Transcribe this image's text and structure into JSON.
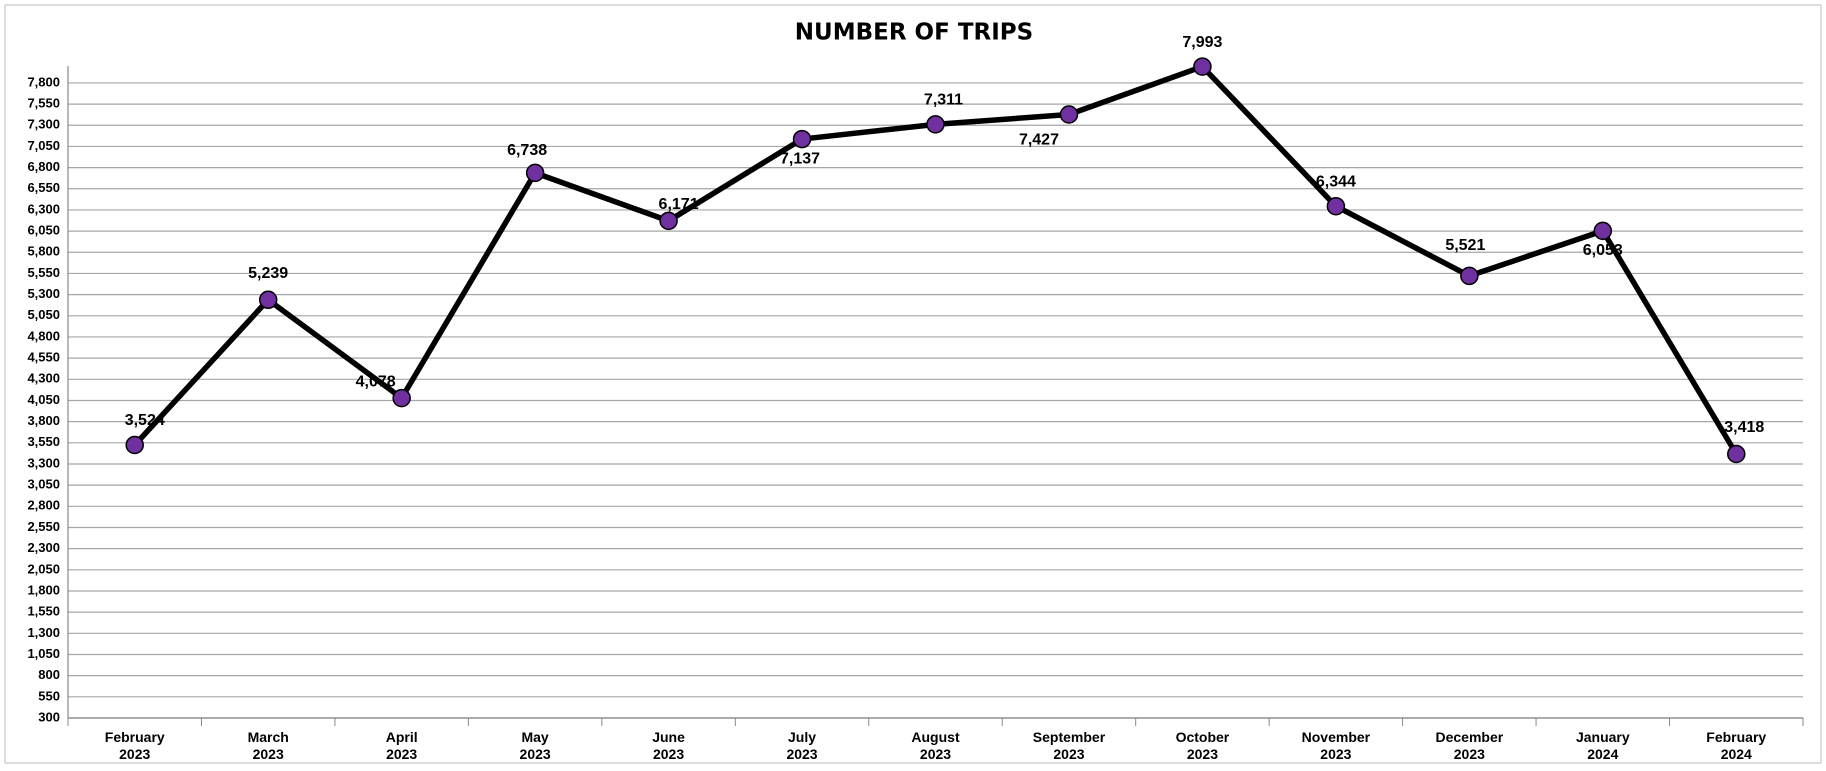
{
  "chart_data": {
    "type": "line",
    "title": "NUMBER OF TRIPS",
    "categories": [
      "February 2023",
      "March 2023",
      "April 2023",
      "May 2023",
      "June 2023",
      "July 2023",
      "August 2023",
      "September 2023",
      "October 2023",
      "November 2023",
      "December 2023",
      "January 2024",
      "February 2024"
    ],
    "series": [
      {
        "name": "Trips",
        "color": "#7030a0",
        "values": [
          3524,
          5239,
          4078,
          6738,
          6171,
          7137,
          7311,
          7427,
          7993,
          6344,
          5521,
          6053,
          3418
        ],
        "value_labels": [
          "3,524",
          "5,239",
          "4,078",
          "6,738",
          "6,171",
          "7,137",
          "7,311",
          "7,427",
          "7,993",
          "6,344",
          "5,521",
          "6,053",
          "3,418"
        ]
      }
    ],
    "ylim": [
      300,
      8000
    ],
    "yticks": [
      300,
      550,
      800,
      {
        "value": 1050,
        "label": "1,050"
      },
      {
        "value": 1300,
        "label": "1,300"
      },
      {
        "value": 1550,
        "label": "1,550"
      },
      {
        "value": 1800,
        "label": "1,800"
      },
      {
        "value": 2050,
        "label": "2,050"
      },
      {
        "value": 2300,
        "label": "2,300"
      },
      {
        "value": 2550,
        "label": "2,550"
      },
      {
        "value": 2800,
        "label": "2,800"
      },
      {
        "value": 3050,
        "label": "3,050"
      },
      {
        "value": 3300,
        "label": "3,300"
      },
      {
        "value": 3550,
        "label": "3,550"
      },
      {
        "value": 3800,
        "label": "3,800"
      },
      {
        "value": 4050,
        "label": "4,050"
      },
      {
        "value": 4300,
        "label": "4,300"
      },
      {
        "value": 4550,
        "label": "4,550"
      },
      {
        "value": 4800,
        "label": "4,800"
      },
      {
        "value": 5050,
        "label": "5,050"
      },
      {
        "value": 5300,
        "label": "5,300"
      },
      {
        "value": 5550,
        "label": "5,550"
      },
      {
        "value": 5800,
        "label": "5,800"
      },
      {
        "value": 6050,
        "label": "6,050"
      },
      {
        "value": 6300,
        "label": "6,300"
      },
      {
        "value": 6550,
        "label": "6,550"
      },
      {
        "value": 6800,
        "label": "6,800"
      },
      {
        "value": 7050,
        "label": "7,050"
      },
      {
        "value": 7300,
        "label": "7,300"
      },
      {
        "value": 7550,
        "label": "7,550"
      },
      {
        "value": 7800,
        "label": "7,800"
      }
    ],
    "grid": true
  }
}
